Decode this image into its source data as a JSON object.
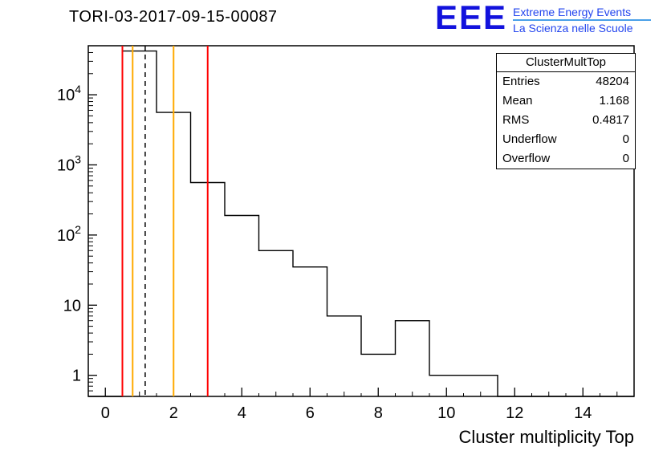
{
  "title": "TORI-03-2017-09-15-00087",
  "logo": {
    "text": "EEE",
    "line1": "Extreme Energy Events",
    "line2": "La Scienza nelle Scuole",
    "text_color": "#1212dd",
    "subtext_color": "#2244ee",
    "divider_color": "#4aa0e8"
  },
  "stats": {
    "title": "ClusterMultTop",
    "rows": [
      {
        "label": "Entries",
        "value": "48204"
      },
      {
        "label": "Mean",
        "value": "1.168"
      },
      {
        "label": "RMS",
        "value": "0.4817"
      },
      {
        "label": "Underflow",
        "value": "0"
      },
      {
        "label": "Overflow",
        "value": "0"
      }
    ]
  },
  "chart_data": {
    "type": "bar",
    "title": "TORI-03-2017-09-15-00087",
    "xlabel": "Cluster multiplicity Top",
    "ylabel": "",
    "y_scale": "log",
    "x_range": [
      -0.5,
      15.5
    ],
    "y_range": [
      0.5,
      50000
    ],
    "x_ticks": [
      0,
      2,
      4,
      6,
      8,
      10,
      12,
      14
    ],
    "x_minor_step": 0.5,
    "y_ticks": [
      {
        "v": 1,
        "base": "1",
        "exp": ""
      },
      {
        "v": 10,
        "base": "10",
        "exp": ""
      },
      {
        "v": 100,
        "base": "10",
        "exp": "2"
      },
      {
        "v": 1000,
        "base": "10",
        "exp": "3"
      },
      {
        "v": 10000,
        "base": "10",
        "exp": "4"
      }
    ],
    "line_color": "#000000",
    "bins": [
      {
        "x0": 0.5,
        "x1": 1.5,
        "y": 42000
      },
      {
        "x0": 1.5,
        "x1": 2.5,
        "y": 5600
      },
      {
        "x0": 2.5,
        "x1": 3.5,
        "y": 560
      },
      {
        "x0": 3.5,
        "x1": 4.5,
        "y": 190
      },
      {
        "x0": 4.5,
        "x1": 5.5,
        "y": 60
      },
      {
        "x0": 5.5,
        "x1": 6.5,
        "y": 35
      },
      {
        "x0": 6.5,
        "x1": 7.5,
        "y": 7
      },
      {
        "x0": 7.5,
        "x1": 8.5,
        "y": 2
      },
      {
        "x0": 8.5,
        "x1": 9.5,
        "y": 6
      },
      {
        "x0": 9.5,
        "x1": 10.5,
        "y": 1
      },
      {
        "x0": 10.5,
        "x1": 11.5,
        "y": 1
      }
    ],
    "vlines": [
      {
        "x": 0.5,
        "color": "#ff0000",
        "style": "solid"
      },
      {
        "x": 0.8,
        "color": "#ffaa00",
        "style": "solid"
      },
      {
        "x": 1.168,
        "color": "#000000",
        "style": "dashed"
      },
      {
        "x": 2.0,
        "color": "#ffaa00",
        "style": "solid"
      },
      {
        "x": 3.0,
        "color": "#ff0000",
        "style": "solid"
      }
    ]
  }
}
